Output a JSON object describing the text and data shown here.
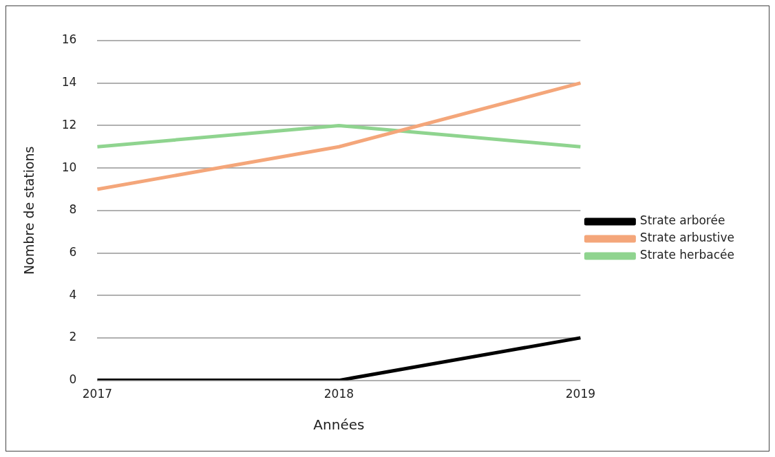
{
  "chart_data": {
    "type": "line",
    "categories": [
      "2017",
      "2018",
      "2019"
    ],
    "series": [
      {
        "name": "Strate arborée",
        "color": "#000000",
        "values": [
          0,
          0,
          2
        ]
      },
      {
        "name": "Strate arbustive",
        "color": "#f4a67a",
        "values": [
          9,
          11,
          14
        ]
      },
      {
        "name": "Strate herbacée",
        "color": "#8fd48f",
        "values": [
          11,
          12,
          11
        ]
      }
    ],
    "xlabel": "Années",
    "ylabel": "Nombre de stations",
    "ylim": [
      0,
      16
    ],
    "yticks": [
      0,
      2,
      4,
      6,
      8,
      10,
      12,
      14,
      16
    ],
    "grid": "y",
    "legend": "right",
    "marker": "none",
    "line_style": "solid"
  }
}
